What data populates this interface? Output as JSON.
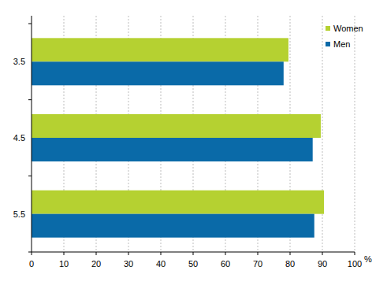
{
  "chart_data": {
    "type": "bar",
    "orientation": "horizontal",
    "categories": [
      "3.5",
      "4.5",
      "5.5"
    ],
    "series": [
      {
        "name": "Women",
        "color": "#b5d131",
        "values": [
          79.5,
          89.5,
          90.5
        ]
      },
      {
        "name": "Men",
        "color": "#0a6aa8",
        "values": [
          78,
          87,
          87.5
        ]
      }
    ],
    "xlim": [
      0,
      100
    ],
    "xticks": [
      0,
      10,
      20,
      30,
      40,
      50,
      60,
      70,
      80,
      90,
      100
    ],
    "xlabel": "%",
    "grid": true,
    "legend": "upper right"
  }
}
